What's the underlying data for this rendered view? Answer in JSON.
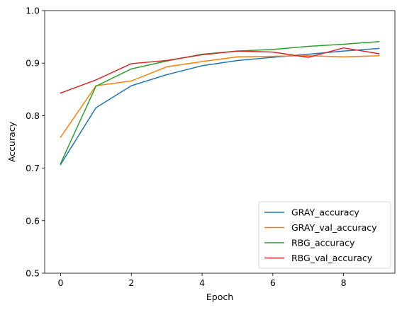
{
  "chart_data": {
    "type": "line",
    "title": "",
    "xlabel": "Epoch",
    "ylabel": "Accuracy",
    "xlim": [
      -0.45,
      9.45
    ],
    "ylim": [
      0.5,
      1.0
    ],
    "xticks": [
      0,
      2,
      4,
      6,
      8
    ],
    "yticks": [
      0.5,
      0.6,
      0.7,
      0.8,
      0.9,
      1.0
    ],
    "xtick_labels": [
      "0",
      "2",
      "4",
      "6",
      "8"
    ],
    "ytick_labels": [
      "0.5",
      "0.6",
      "0.7",
      "0.8",
      "0.9",
      "1.0"
    ],
    "grid": false,
    "legend": "lower-right",
    "x": [
      0,
      1,
      2,
      3,
      4,
      5,
      6,
      7,
      8,
      9
    ],
    "series": [
      {
        "name": "GRAY_accuracy",
        "color": "#1f77b4",
        "values": [
          0.707,
          0.815,
          0.857,
          0.878,
          0.895,
          0.905,
          0.911,
          0.917,
          0.923,
          0.928
        ]
      },
      {
        "name": "GRAY_val_accuracy",
        "color": "#ff7f0e",
        "values": [
          0.759,
          0.857,
          0.866,
          0.893,
          0.903,
          0.912,
          0.913,
          0.914,
          0.912,
          0.914
        ]
      },
      {
        "name": "RBG_accuracy",
        "color": "#2ca02c",
        "values": [
          0.709,
          0.856,
          0.889,
          0.904,
          0.917,
          0.923,
          0.926,
          0.932,
          0.936,
          0.941
        ]
      },
      {
        "name": "RBG_val_accuracy",
        "color": "#d62728",
        "values": [
          0.843,
          0.868,
          0.899,
          0.905,
          0.916,
          0.923,
          0.921,
          0.911,
          0.929,
          0.918
        ]
      }
    ]
  }
}
